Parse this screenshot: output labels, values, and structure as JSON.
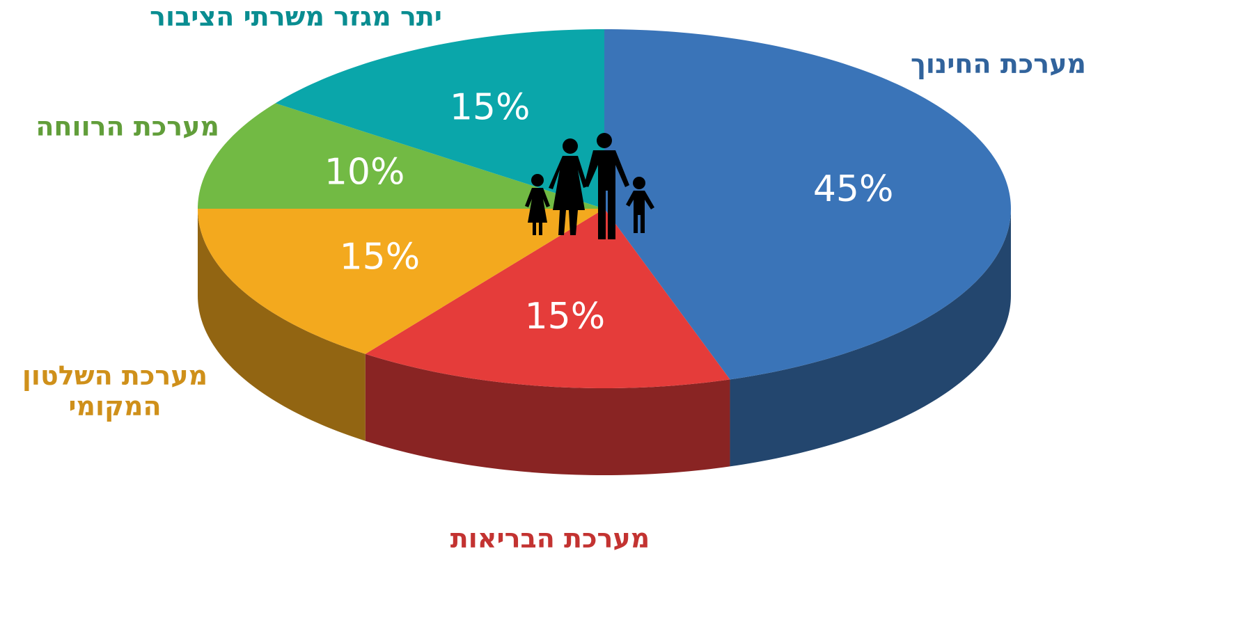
{
  "chart_data": {
    "type": "pie",
    "categories": [
      "מערכת החינוך",
      "מערכת הבריאות",
      "מערכת השלטון המקומי",
      "מערכת הרווחה",
      "יתר מגזר משרתי הציבור"
    ],
    "values": [
      45,
      15,
      15,
      10,
      15
    ],
    "value_labels": [
      "45%",
      "15%",
      "15%",
      "10%",
      "15%"
    ],
    "colors": [
      "#3a74b8",
      "#e53c3a",
      "#f3a91e",
      "#72ba44",
      "#0aa6aa"
    ]
  }
}
